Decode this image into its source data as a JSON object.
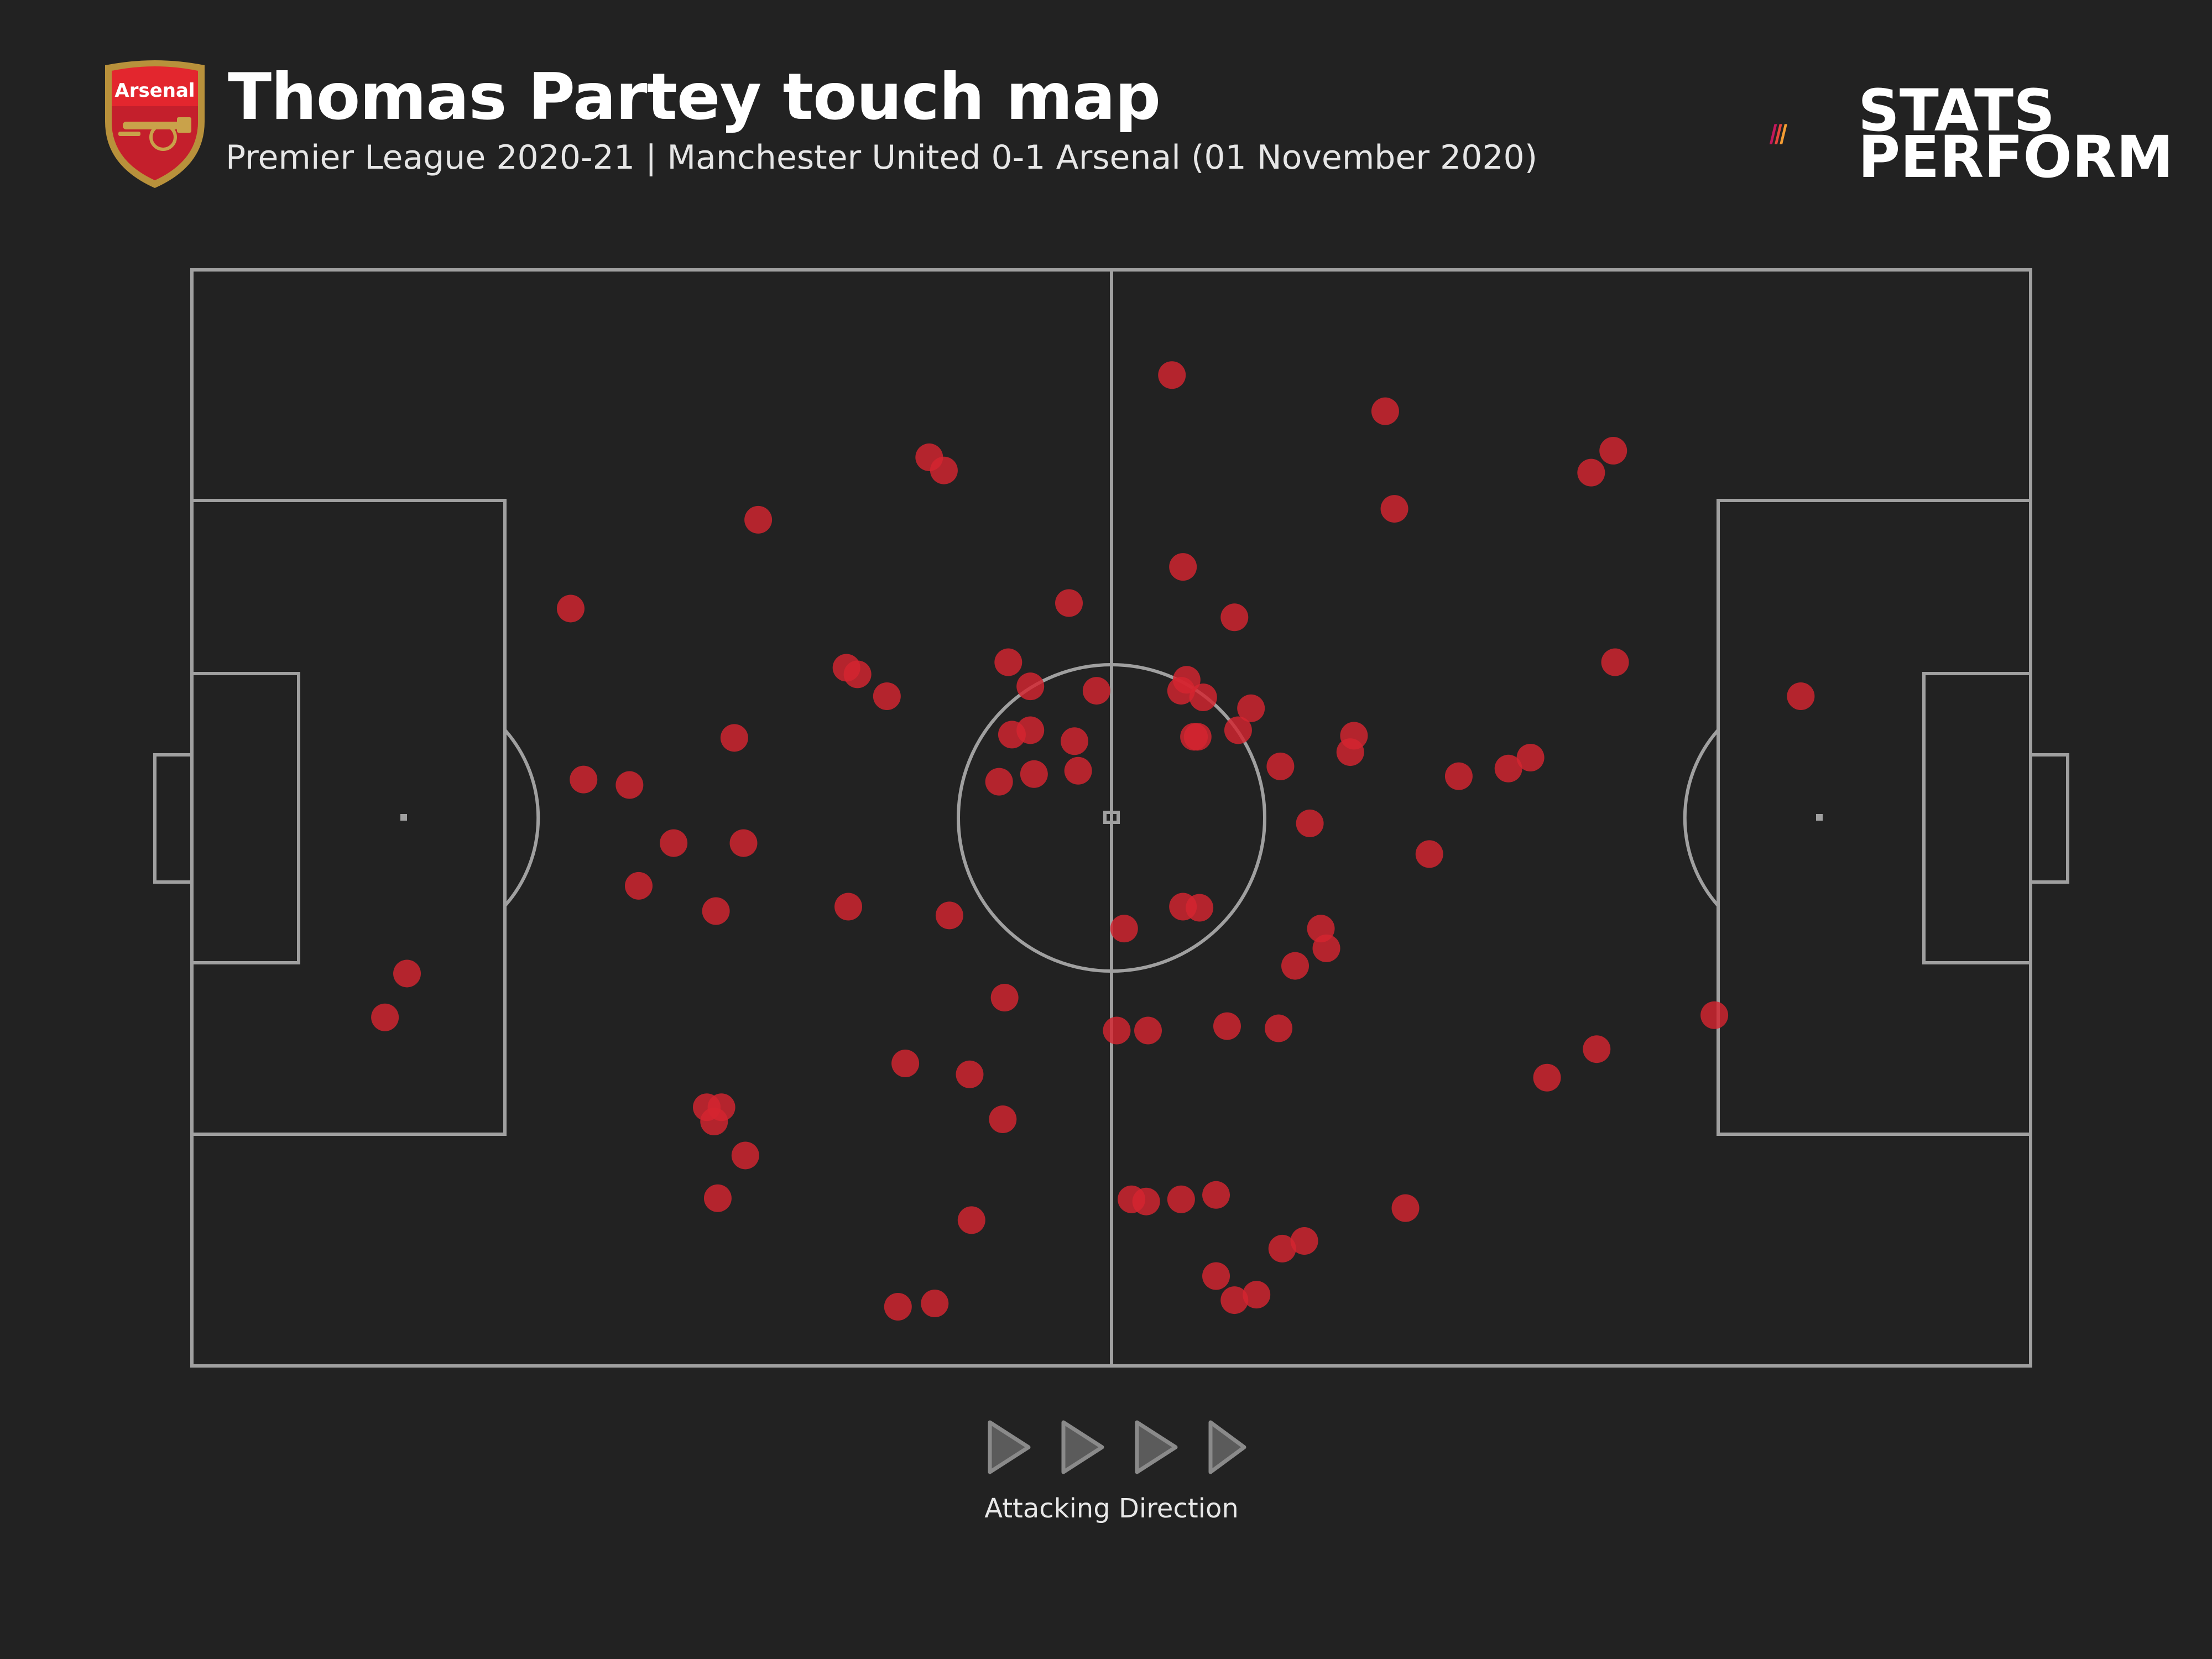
{
  "header": {
    "title": "Thomas Partey touch map",
    "subtitle": "Premier League 2020-21 | Manchester United 0-1 Arsenal (01 November 2020)",
    "crest_label": "Arsenal"
  },
  "brand": {
    "line1": "STATS",
    "line2": "PERFORM",
    "stripe_colors": [
      "#c2185b",
      "#e8453c",
      "#f39c33"
    ]
  },
  "colors": {
    "background": "#222222",
    "pitch_lines": "#a0a0a0",
    "touch_marker": "#d4252f",
    "arrow": "#8a8a8a"
  },
  "footer": {
    "direction_label": "Attacking Direction",
    "direction_icon": "play-arrow-icon"
  },
  "chart_data": {
    "type": "scatter",
    "title": "Thomas Partey touch map",
    "xlabel": "",
    "ylabel": "",
    "xlim": [
      0,
      100
    ],
    "ylim": [
      0,
      100
    ],
    "grid": false,
    "series": [
      {
        "points": [
          [
            53.3,
            90.4
          ],
          [
            64.9,
            87.1
          ],
          [
            77.3,
            83.5
          ],
          [
            76.1,
            81.5
          ],
          [
            40.1,
            82.9
          ],
          [
            40.9,
            81.7
          ],
          [
            30.8,
            77.2
          ],
          [
            65.4,
            78.2
          ],
          [
            20.6,
            69.1
          ],
          [
            53.9,
            72.9
          ],
          [
            47.7,
            69.6
          ],
          [
            56.7,
            68.3
          ],
          [
            44.4,
            64.2
          ],
          [
            35.6,
            63.7
          ],
          [
            36.2,
            63.1
          ],
          [
            37.8,
            61.1
          ],
          [
            45.6,
            62.0
          ],
          [
            49.2,
            61.6
          ],
          [
            53.8,
            61.6
          ],
          [
            54.1,
            62.6
          ],
          [
            55.0,
            61.0
          ],
          [
            57.6,
            60.0
          ],
          [
            87.5,
            61.1
          ],
          [
            77.4,
            64.2
          ],
          [
            29.5,
            57.3
          ],
          [
            45.6,
            58.0
          ],
          [
            44.6,
            57.6
          ],
          [
            48.0,
            57.0
          ],
          [
            54.7,
            57.4
          ],
          [
            54.5,
            57.4
          ],
          [
            56.9,
            58.0
          ],
          [
            63.2,
            57.5
          ],
          [
            63.0,
            56.0
          ],
          [
            72.8,
            55.5
          ],
          [
            68.9,
            53.8
          ],
          [
            71.6,
            54.5
          ],
          [
            21.3,
            53.5
          ],
          [
            23.8,
            53.0
          ],
          [
            43.9,
            53.3
          ],
          [
            45.8,
            54.0
          ],
          [
            48.2,
            54.3
          ],
          [
            59.2,
            54.7
          ],
          [
            60.8,
            49.5
          ],
          [
            26.2,
            47.7
          ],
          [
            30.0,
            47.7
          ],
          [
            67.3,
            46.7
          ],
          [
            24.3,
            43.8
          ],
          [
            28.5,
            41.5
          ],
          [
            35.7,
            41.9
          ],
          [
            41.2,
            41.1
          ],
          [
            50.7,
            39.9
          ],
          [
            53.9,
            41.9
          ],
          [
            54.8,
            41.8
          ],
          [
            61.7,
            38.1
          ],
          [
            61.4,
            39.9
          ],
          [
            44.2,
            33.6
          ],
          [
            60.0,
            36.5
          ],
          [
            50.3,
            30.6
          ],
          [
            52.0,
            30.6
          ],
          [
            56.3,
            31.0
          ],
          [
            59.1,
            30.8
          ],
          [
            11.7,
            35.8
          ],
          [
            10.5,
            31.8
          ],
          [
            28.0,
            23.6
          ],
          [
            28.8,
            23.6
          ],
          [
            28.4,
            22.3
          ],
          [
            30.1,
            19.2
          ],
          [
            38.8,
            27.6
          ],
          [
            42.3,
            26.6
          ],
          [
            44.1,
            22.5
          ],
          [
            76.4,
            28.9
          ],
          [
            73.7,
            26.3
          ],
          [
            66.0,
            14.4
          ],
          [
            51.1,
            15.2
          ],
          [
            51.9,
            15.0
          ],
          [
            53.8,
            15.2
          ],
          [
            55.7,
            15.6
          ],
          [
            28.6,
            15.3
          ],
          [
            42.4,
            13.3
          ],
          [
            60.5,
            11.4
          ],
          [
            59.3,
            10.7
          ],
          [
            38.4,
            5.4
          ],
          [
            40.4,
            5.7
          ],
          [
            55.7,
            8.2
          ],
          [
            56.7,
            6.0
          ],
          [
            57.9,
            6.5
          ],
          [
            82.8,
            32.0
          ]
        ]
      }
    ]
  }
}
